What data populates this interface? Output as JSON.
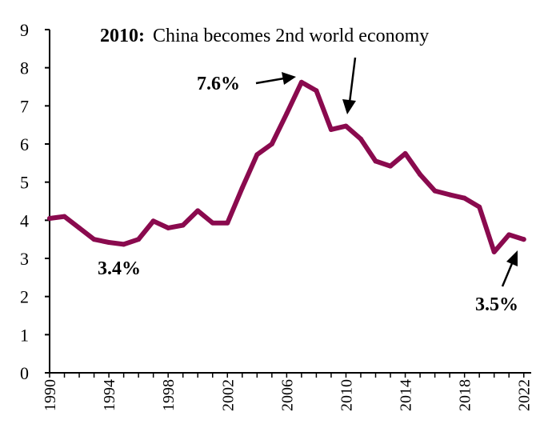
{
  "chart_data": {
    "type": "line",
    "x": [
      1990,
      1991,
      1992,
      1993,
      1994,
      1995,
      1996,
      1997,
      1998,
      1999,
      2000,
      2001,
      2002,
      2003,
      2004,
      2005,
      2006,
      2007,
      2008,
      2009,
      2010,
      2011,
      2012,
      2013,
      2014,
      2015,
      2016,
      2017,
      2018,
      2019,
      2020,
      2021,
      2022
    ],
    "series": [
      {
        "values": [
          4.05,
          4.1,
          3.8,
          3.5,
          3.42,
          3.37,
          3.5,
          3.98,
          3.8,
          3.87,
          4.25,
          3.93,
          3.93,
          4.85,
          5.72,
          6.0,
          6.8,
          7.62,
          7.4,
          6.38,
          6.47,
          6.13,
          5.55,
          5.42,
          5.75,
          5.2,
          4.77,
          4.67,
          4.58,
          4.35,
          3.17,
          3.62,
          3.5
        ],
        "color": "#8a0a4e"
      }
    ],
    "xticks": [
      "1990",
      "1994",
      "1998",
      "2002",
      "2006",
      "2010",
      "2014",
      "2018",
      "2022"
    ],
    "yticks": [
      "0",
      "1",
      "2",
      "3",
      "4",
      "5",
      "6",
      "7",
      "8",
      "9"
    ],
    "ylim": [
      0,
      9
    ],
    "xlim": [
      1990,
      2022.5
    ],
    "grid": false,
    "legend": "none",
    "title": "",
    "xlabel": "",
    "ylabel": ""
  },
  "annotations": {
    "headline_year": "2010:",
    "headline_text": "China becomes 2nd world economy",
    "peak_label": "7.6%",
    "low_label": "3.4%",
    "end_label": "3.5%"
  }
}
